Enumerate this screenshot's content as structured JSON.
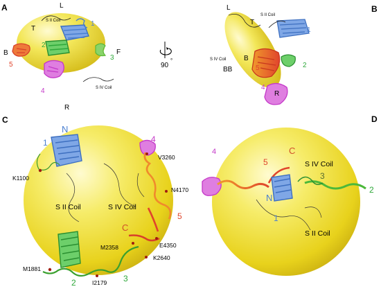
{
  "panels": {
    "a": "A",
    "b": "B",
    "c": "C",
    "d": "D"
  },
  "rotation": {
    "angle": "90",
    "degree_symbol": "°"
  },
  "panel_a": {
    "region_L": "L",
    "region_T": "T",
    "region_B": "B",
    "region_F": "F",
    "region_R": "R",
    "coil_top": "S II Coil",
    "coil_bottom": "S IV Coil",
    "dom1": "1",
    "dom2": "2",
    "dom3": "3",
    "dom4": "4",
    "dom5": "5"
  },
  "panel_b": {
    "region_L": "L",
    "region_T": "T",
    "region_B": "B",
    "region_BB": "BB",
    "region_R": "R",
    "coil_top": "S II Coil",
    "coil_left": "S IV Coil",
    "dom1": "1",
    "dom2": "2",
    "dom4": "4",
    "dom5": "5"
  },
  "panel_c": {
    "terminus_N": "N",
    "terminus_C": "C",
    "dom1": "1",
    "dom2": "2",
    "dom3": "3",
    "dom4": "4",
    "dom5": "5",
    "coil_left": "S II Coil",
    "coil_right": "S IV Coil",
    "residues": {
      "k1100": "K1100",
      "v3260": "V3260",
      "n4170": "N4170",
      "m2358": "M2358",
      "e4350": "E4350",
      "k2640": "K2640",
      "m1881": "M1881",
      "i2179": "I2179"
    }
  },
  "panel_d": {
    "terminus_N": "N",
    "terminus_C": "C",
    "dom1": "1",
    "dom2": "2",
    "dom3": "3",
    "dom4": "4",
    "dom5": "5",
    "coil_top": "S IV Coil",
    "coil_bottom": "S II Coil"
  },
  "colors": {
    "sphere": "#f2e22a",
    "dom1": "#4a7fd0",
    "dom2": "#2ea83a",
    "dom3": "#6fbf3a",
    "dom4": "#c438c8",
    "dom5": "#e0442c",
    "label_C": "#d0502a"
  }
}
